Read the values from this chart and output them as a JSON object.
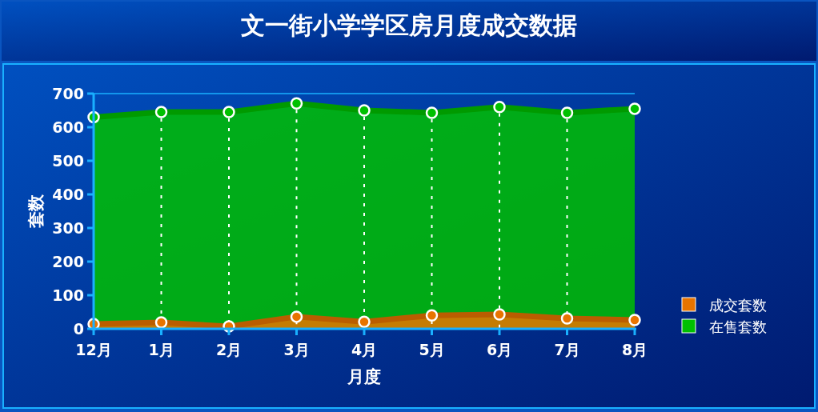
{
  "chart_data": {
    "type": "area",
    "title": "文一街小学学区房月度成交数据",
    "xlabel": "月度",
    "ylabel": "套数",
    "categories": [
      "12月",
      "1月",
      "2月",
      "3月",
      "4月",
      "5月",
      "6月",
      "7月",
      "8月"
    ],
    "series": [
      {
        "name": "成交套数",
        "color": "#e87400",
        "values": [
          14,
          19,
          7,
          36,
          21,
          40,
          43,
          31,
          26
        ]
      },
      {
        "name": "在售套数",
        "color": "#00c000",
        "values": [
          630,
          645,
          645,
          671,
          650,
          643,
          660,
          643,
          655
        ]
      }
    ],
    "ylim": [
      0,
      700
    ],
    "yticks": [
      0,
      100,
      200,
      300,
      400,
      500,
      600,
      700
    ],
    "grid": "x",
    "legend": "right",
    "marker": "circle"
  }
}
